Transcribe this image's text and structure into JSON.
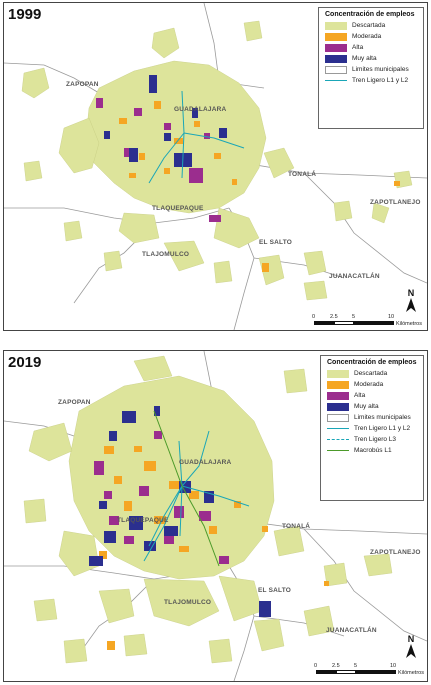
{
  "panels": [
    {
      "year": "1999",
      "places": [
        "ZAPOPAN",
        "GUADALAJARA",
        "TONALÁ",
        "ZAPOTLANEJO",
        "TLAQUEPAQUE",
        "TLAJOMULCO",
        "EL SALTO",
        "JUANACATLÁN"
      ],
      "legend": {
        "title": "Concentración de empleos",
        "items": [
          {
            "label": "Descartada",
            "color": "#dde49b",
            "kind": "fill"
          },
          {
            "label": "Moderada",
            "color": "#f5a623",
            "kind": "fill"
          },
          {
            "label": "Alta",
            "color": "#9b2d8e",
            "kind": "fill"
          },
          {
            "label": "Muy alta",
            "color": "#2b2f8f",
            "kind": "fill"
          },
          {
            "label": "Limites municipales",
            "color": "#ffffff",
            "kind": "box"
          },
          {
            "label": "Tren Ligero L1 y L2",
            "color": "#1aa6b7",
            "kind": "line"
          }
        ]
      },
      "north": "N",
      "scale": {
        "ticks": [
          "0",
          "2.5",
          "5",
          "10"
        ],
        "unit": "Kilómetros"
      }
    },
    {
      "year": "2019",
      "places": [
        "ZAPOPAN",
        "GUADALAJARA",
        "TONALÁ",
        "ZAPOTLANEJO",
        "TLAQUEPAQUE",
        "TLAJOMULCO",
        "EL SALTO",
        "JUANACATLÁN"
      ],
      "legend": {
        "title": "Concentración de empleos",
        "items": [
          {
            "label": "Descartada",
            "color": "#dde49b",
            "kind": "fill"
          },
          {
            "label": "Moderada",
            "color": "#f5a623",
            "kind": "fill"
          },
          {
            "label": "Alta",
            "color": "#9b2d8e",
            "kind": "fill"
          },
          {
            "label": "Muy alta",
            "color": "#2b2f8f",
            "kind": "fill"
          },
          {
            "label": "Limites municipales",
            "color": "#ffffff",
            "kind": "box"
          },
          {
            "label": "Tren Ligero L1 y L2",
            "color": "#1aa6b7",
            "kind": "line"
          },
          {
            "label": "Tren Ligero L3",
            "color": "#1aa6b7",
            "kind": "line"
          },
          {
            "label": "Macrobús L1",
            "color": "#4c9a2a",
            "kind": "line"
          }
        ]
      },
      "north": "N",
      "scale": {
        "ticks": [
          "0",
          "2.5",
          "5",
          "10"
        ],
        "unit": "Kilómetros"
      }
    }
  ]
}
